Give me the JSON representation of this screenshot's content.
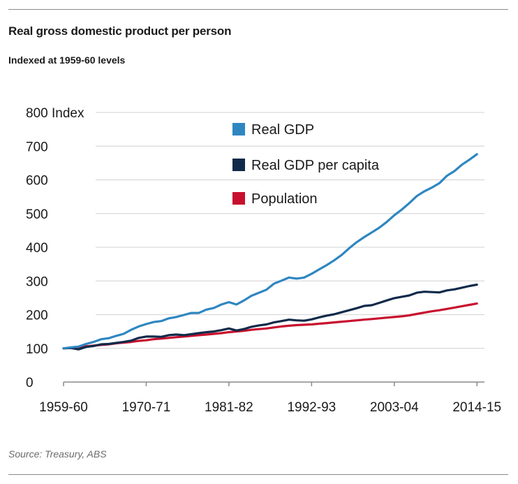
{
  "title": "Real gross domestic product per person",
  "subtitle": "Indexed at 1959-60 levels",
  "source": "Source: Treasury, ABS",
  "colors": {
    "Real GDP": "#2e86c1",
    "Real GDP per capita": "#0f2a4a",
    "Population": "#c8102e",
    "grid": "#d9d9d9",
    "axis": "#8a8a8a"
  },
  "chart_data": {
    "type": "line",
    "title": "Real gross domestic product per person",
    "subtitle": "Indexed at 1959-60 levels",
    "ylabel": "Index",
    "ylim": [
      0,
      800
    ],
    "yticks": [
      0,
      100,
      200,
      300,
      400,
      500,
      600,
      700,
      800
    ],
    "ytick_labels": [
      "0",
      "100",
      "200",
      "300",
      "400",
      "500",
      "600",
      "700",
      "800 Index"
    ],
    "xlim": [
      1959,
      2015
    ],
    "xticks": [
      1959,
      1970,
      1981,
      1992,
      2003,
      2014
    ],
    "xtick_labels": [
      "1959-60",
      "1970-71",
      "1981-82",
      "1992-93",
      "2003-04",
      "2014-15"
    ],
    "grid": true,
    "legend_position": "top-right",
    "series": [
      {
        "name": "Real GDP",
        "x": [
          1959,
          1960,
          1961,
          1962,
          1963,
          1964,
          1965,
          1966,
          1967,
          1968,
          1969,
          1970,
          1971,
          1972,
          1973,
          1974,
          1975,
          1976,
          1977,
          1978,
          1979,
          1980,
          1981,
          1982,
          1983,
          1984,
          1985,
          1986,
          1987,
          1988,
          1989,
          1990,
          1991,
          1992,
          1993,
          1994,
          1995,
          1996,
          1997,
          1998,
          1999,
          2000,
          2001,
          2002,
          2003,
          2004,
          2005,
          2006,
          2007,
          2008,
          2009,
          2010,
          2011,
          2012,
          2013,
          2014
        ],
        "values": [
          100,
          103,
          105,
          113,
          119,
          127,
          130,
          137,
          143,
          155,
          165,
          172,
          178,
          181,
          189,
          193,
          199,
          205,
          205,
          215,
          220,
          230,
          237,
          230,
          242,
          256,
          265,
          274,
          292,
          301,
          310,
          307,
          310,
          321,
          334,
          347,
          361,
          377,
          397,
          415,
          430,
          444,
          458,
          475,
          495,
          512,
          531,
          552,
          566,
          577,
          590,
          612,
          626,
          645,
          660,
          676
        ]
      },
      {
        "name": "Real GDP per capita",
        "x": [
          1959,
          1960,
          1961,
          1962,
          1963,
          1964,
          1965,
          1966,
          1967,
          1968,
          1969,
          1970,
          1971,
          1972,
          1973,
          1974,
          1975,
          1976,
          1977,
          1978,
          1979,
          1980,
          1981,
          1982,
          1983,
          1984,
          1985,
          1986,
          1987,
          1988,
          1989,
          1990,
          1991,
          1992,
          1993,
          1994,
          1995,
          1996,
          1997,
          1998,
          1999,
          2000,
          2001,
          2002,
          2003,
          2004,
          2005,
          2006,
          2007,
          2008,
          2009,
          2010,
          2011,
          2012,
          2013,
          2014
        ],
        "values": [
          100,
          101,
          97,
          104,
          107,
          112,
          113,
          116,
          119,
          123,
          131,
          135,
          135,
          134,
          139,
          141,
          139,
          142,
          145,
          148,
          150,
          154,
          159,
          153,
          157,
          164,
          168,
          171,
          177,
          181,
          185,
          183,
          182,
          186,
          192,
          197,
          201,
          207,
          213,
          219,
          226,
          228,
          235,
          242,
          249,
          253,
          257,
          265,
          268,
          267,
          266,
          272,
          275,
          280,
          285,
          289
        ]
      },
      {
        "name": "Population",
        "x": [
          1959,
          1960,
          1961,
          1962,
          1963,
          1964,
          1965,
          1966,
          1967,
          1968,
          1969,
          1970,
          1971,
          1972,
          1973,
          1974,
          1975,
          1976,
          1977,
          1978,
          1979,
          1980,
          1981,
          1982,
          1983,
          1984,
          1985,
          1986,
          1987,
          1988,
          1989,
          1990,
          1991,
          1992,
          1993,
          1994,
          1995,
          1996,
          1997,
          1998,
          1999,
          2000,
          2001,
          2002,
          2003,
          2004,
          2005,
          2006,
          2007,
          2008,
          2009,
          2010,
          2011,
          2012,
          2013,
          2014
        ],
        "values": [
          100,
          102,
          104,
          106,
          108,
          110,
          112,
          115,
          117,
          119,
          122,
          124,
          127,
          129,
          131,
          133,
          135,
          137,
          139,
          141,
          143,
          145,
          148,
          150,
          152,
          155,
          157,
          159,
          162,
          165,
          167,
          169,
          170,
          171,
          173,
          175,
          177,
          179,
          181,
          183,
          185,
          187,
          189,
          191,
          193,
          195,
          198,
          202,
          206,
          210,
          213,
          217,
          221,
          225,
          229,
          233
        ]
      }
    ]
  }
}
